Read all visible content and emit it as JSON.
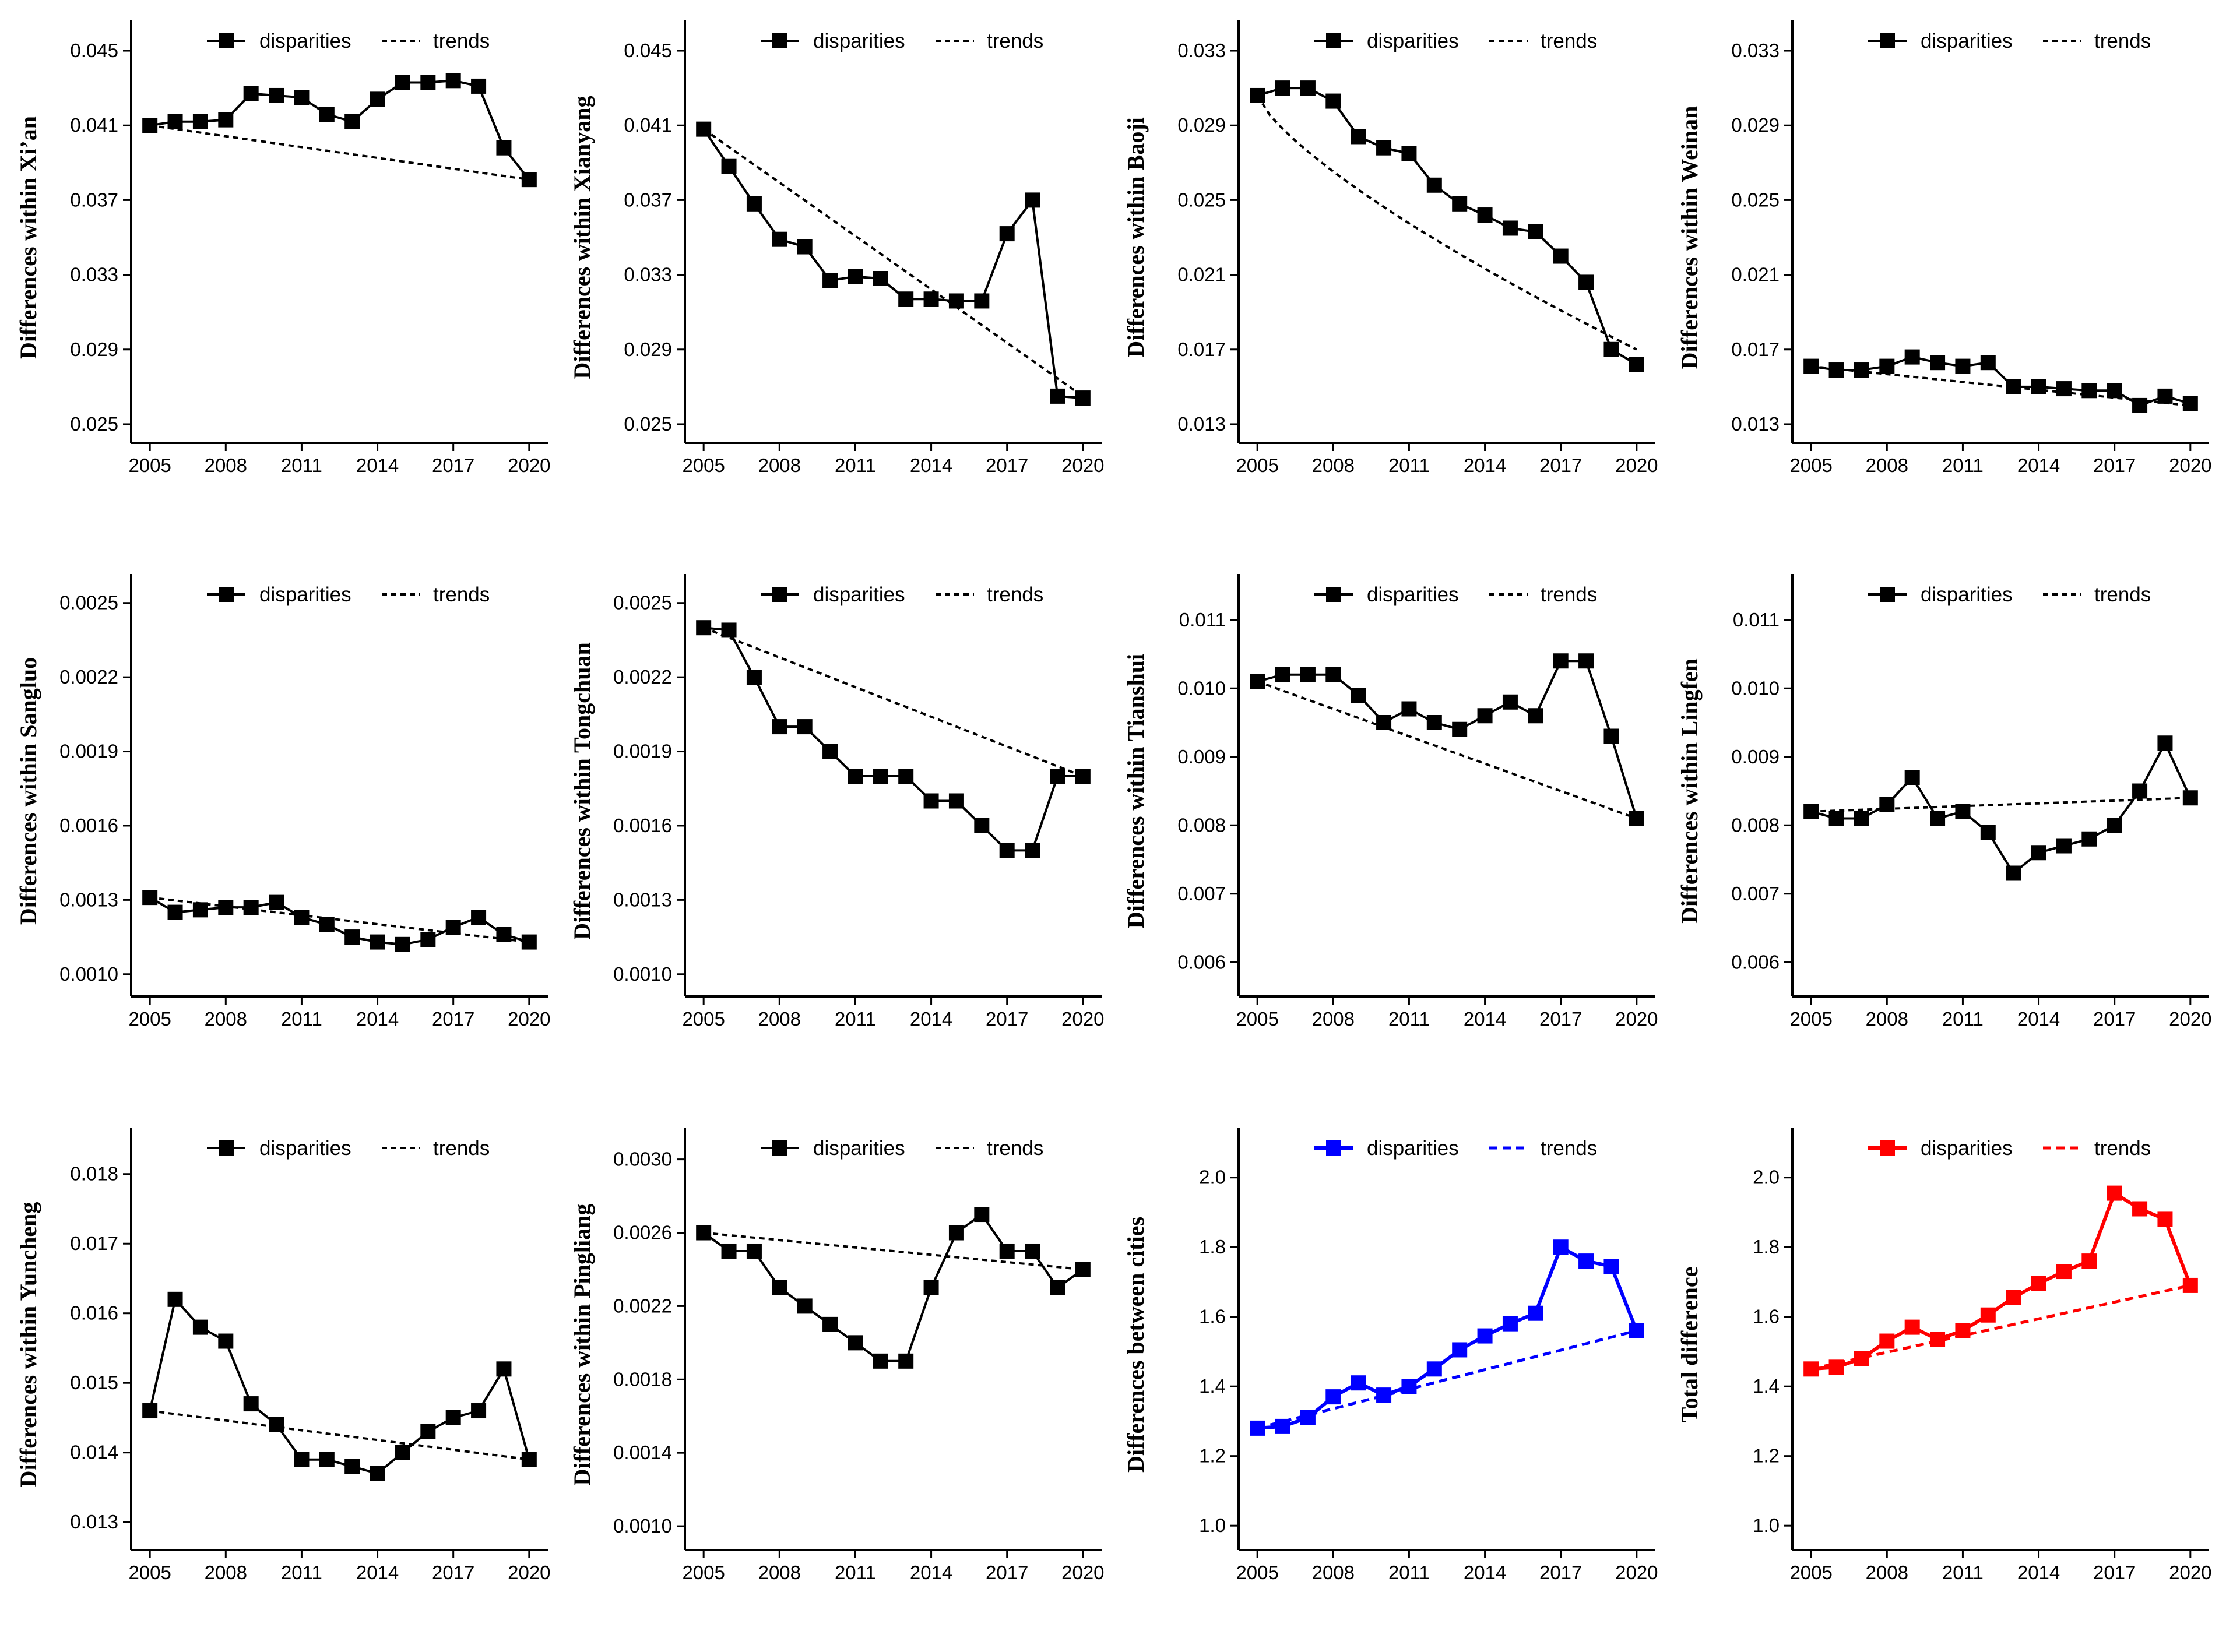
{
  "legend": {
    "series_label": "disparities",
    "trend_label": "trends"
  },
  "chart_data": [
    {
      "type": "line",
      "ylabel": "Differences within Xi’an",
      "color": "#000000",
      "x": [
        2005,
        2006,
        2007,
        2008,
        2009,
        2010,
        2011,
        2012,
        2013,
        2014,
        2015,
        2016,
        2017,
        2018,
        2019,
        2020
      ],
      "values": [
        0.041,
        0.0412,
        0.0412,
        0.0413,
        0.0427,
        0.0426,
        0.0425,
        0.0416,
        0.0412,
        0.0424,
        0.0433,
        0.0433,
        0.0434,
        0.0431,
        0.0398,
        0.0381
      ],
      "trend": [
        0.041,
        0.0381
      ],
      "xticks": [
        "2005",
        "2008",
        "2011",
        "2014",
        "2017",
        "2020"
      ],
      "yticks": [
        "0.025",
        "0.029",
        "0.033",
        "0.037",
        "0.041",
        "0.045"
      ],
      "ylim": [
        0.024,
        0.046
      ]
    },
    {
      "type": "line",
      "ylabel": "Differences within Xianyang",
      "color": "#000000",
      "x": [
        2005,
        2006,
        2007,
        2008,
        2009,
        2010,
        2011,
        2012,
        2013,
        2014,
        2015,
        2016,
        2017,
        2018,
        2019,
        2020
      ],
      "values": [
        0.0408,
        0.0388,
        0.0368,
        0.0349,
        0.0345,
        0.0327,
        0.0329,
        0.0328,
        0.0317,
        0.0317,
        0.0316,
        0.0316,
        0.0352,
        0.037,
        0.0265,
        0.0264
      ],
      "trend": [
        0.0408,
        0.0265
      ],
      "xticks": [
        "2005",
        "2008",
        "2011",
        "2014",
        "2017",
        "2020"
      ],
      "yticks": [
        "0.025",
        "0.029",
        "0.033",
        "0.037",
        "0.041",
        "0.045"
      ],
      "ylim": [
        0.024,
        0.046
      ]
    },
    {
      "type": "line",
      "ylabel": "Differences within Baoji",
      "color": "#000000",
      "x": [
        2005,
        2006,
        2007,
        2008,
        2009,
        2010,
        2011,
        2012,
        2013,
        2014,
        2015,
        2016,
        2017,
        2018,
        2019,
        2020
      ],
      "values": [
        0.0306,
        0.031,
        0.031,
        0.0303,
        0.0284,
        0.0278,
        0.0275,
        0.0258,
        0.0248,
        0.0242,
        0.0235,
        0.0233,
        0.022,
        0.0206,
        0.017,
        0.0162
      ],
      "trend": [
        0.0306,
        0.017
      ],
      "trend_curve": 0.25,
      "xticks": [
        "2005",
        "2008",
        "2011",
        "2014",
        "2017",
        "2020"
      ],
      "yticks": [
        "0.013",
        "0.017",
        "0.021",
        "0.025",
        "0.029",
        "0.033"
      ],
      "ylim": [
        0.012,
        0.034
      ]
    },
    {
      "type": "line",
      "ylabel": "Differences within Weinan",
      "color": "#000000",
      "x": [
        2005,
        2006,
        2007,
        2008,
        2009,
        2010,
        2011,
        2012,
        2013,
        2014,
        2015,
        2016,
        2017,
        2018,
        2019,
        2020
      ],
      "values": [
        0.0161,
        0.0159,
        0.0159,
        0.0161,
        0.0166,
        0.0163,
        0.0161,
        0.0163,
        0.015,
        0.015,
        0.0149,
        0.0148,
        0.0148,
        0.014,
        0.0145,
        0.0141
      ],
      "trend": [
        0.0161,
        0.014
      ],
      "trend_start": 2005,
      "trend_end": 2020,
      "xticks": [
        "2005",
        "2008",
        "2011",
        "2014",
        "2017",
        "2020"
      ],
      "yticks": [
        "0.013",
        "0.017",
        "0.021",
        "0.025",
        "0.029",
        "0.033"
      ],
      "ylim": [
        0.012,
        0.034
      ]
    },
    {
      "type": "line",
      "ylabel": "Differences within Sangluo",
      "color": "#000000",
      "x": [
        2005,
        2006,
        2007,
        2008,
        2009,
        2010,
        2011,
        2012,
        2013,
        2014,
        2015,
        2016,
        2017,
        2018,
        2019,
        2020
      ],
      "values": [
        0.00131,
        0.00125,
        0.00126,
        0.00127,
        0.00127,
        0.00129,
        0.00123,
        0.0012,
        0.00115,
        0.00113,
        0.00112,
        0.00114,
        0.00119,
        0.00123,
        0.00116,
        0.00113
      ],
      "trend": [
        0.00131,
        0.00113
      ],
      "xticks": [
        "2005",
        "2008",
        "2011",
        "2014",
        "2017",
        "2020"
      ],
      "yticks": [
        "0.0010",
        "0.0013",
        "0.0016",
        "0.0019",
        "0.0022",
        "0.0025"
      ],
      "ylim": [
        0.00091,
        0.00257
      ]
    },
    {
      "type": "line",
      "ylabel": "Differences within Tongchuan",
      "color": "#000000",
      "x": [
        2005,
        2006,
        2007,
        2008,
        2009,
        2010,
        2011,
        2012,
        2013,
        2014,
        2015,
        2016,
        2017,
        2018,
        2019,
        2020
      ],
      "values": [
        0.0024,
        0.00239,
        0.0022,
        0.002,
        0.002,
        0.0019,
        0.0018,
        0.0018,
        0.0018,
        0.0017,
        0.0017,
        0.0016,
        0.0015,
        0.0015,
        0.0018,
        0.0018
      ],
      "trend": [
        0.0024,
        0.0018
      ],
      "xticks": [
        "2005",
        "2008",
        "2011",
        "2014",
        "2017",
        "2020"
      ],
      "yticks": [
        "0.0010",
        "0.0013",
        "0.0016",
        "0.0019",
        "0.0022",
        "0.0025"
      ],
      "ylim": [
        0.00091,
        0.00257
      ]
    },
    {
      "type": "line",
      "ylabel": "Differences within Tianshui",
      "color": "#000000",
      "x": [
        2005,
        2006,
        2007,
        2008,
        2009,
        2010,
        2011,
        2012,
        2013,
        2014,
        2015,
        2016,
        2017,
        2018,
        2019,
        2020
      ],
      "values": [
        0.0101,
        0.0102,
        0.0102,
        0.0102,
        0.0099,
        0.0095,
        0.0097,
        0.0095,
        0.0094,
        0.0096,
        0.0098,
        0.0096,
        0.0104,
        0.0104,
        0.0093,
        0.0081
      ],
      "trend": [
        0.0101,
        0.0081
      ],
      "xticks": [
        "2005",
        "2008",
        "2011",
        "2014",
        "2017",
        "2020"
      ],
      "yticks": [
        "0.006",
        "0.007",
        "0.008",
        "0.009",
        "0.010",
        "0.011"
      ],
      "ylim": [
        0.0055,
        0.0115
      ]
    },
    {
      "type": "line",
      "ylabel": "Differences within Lingfen",
      "color": "#000000",
      "x": [
        2005,
        2006,
        2007,
        2008,
        2009,
        2010,
        2011,
        2012,
        2013,
        2014,
        2015,
        2016,
        2017,
        2018,
        2019,
        2020
      ],
      "values": [
        0.0082,
        0.0081,
        0.0081,
        0.0083,
        0.0087,
        0.0081,
        0.0082,
        0.0079,
        0.0073,
        0.0076,
        0.0077,
        0.0078,
        0.008,
        0.0085,
        0.0092,
        0.0084
      ],
      "trend": [
        0.0082,
        0.0084
      ],
      "xticks": [
        "2005",
        "2008",
        "2011",
        "2014",
        "2017",
        "2020"
      ],
      "yticks": [
        "0.006",
        "0.007",
        "0.008",
        "0.009",
        "0.010",
        "0.011"
      ],
      "ylim": [
        0.0055,
        0.0115
      ]
    },
    {
      "type": "line",
      "ylabel": "Differences within Yuncheng",
      "color": "#000000",
      "x": [
        2005,
        2006,
        2007,
        2008,
        2009,
        2010,
        2011,
        2012,
        2013,
        2014,
        2015,
        2016,
        2017,
        2018,
        2019,
        2020
      ],
      "values": [
        0.0146,
        0.0162,
        0.0158,
        0.0156,
        0.0147,
        0.0144,
        0.0139,
        0.0139,
        0.0138,
        0.0137,
        0.014,
        0.0143,
        0.0145,
        0.0146,
        0.0152,
        0.0139
      ],
      "trend": [
        0.0146,
        0.0139
      ],
      "xticks": [
        "2005",
        "2008",
        "2011",
        "2014",
        "2017",
        "2020"
      ],
      "yticks": [
        "0.013",
        "0.014",
        "0.015",
        "0.016",
        "0.017",
        "0.018"
      ],
      "ylim": [
        0.0126,
        0.0185
      ]
    },
    {
      "type": "line",
      "ylabel": "Differences within Pingliang",
      "color": "#000000",
      "x": [
        2005,
        2006,
        2007,
        2008,
        2009,
        2010,
        2011,
        2012,
        2013,
        2014,
        2015,
        2016,
        2017,
        2018,
        2019,
        2020
      ],
      "values": [
        0.0026,
        0.0025,
        0.0025,
        0.0023,
        0.0022,
        0.0021,
        0.002,
        0.0019,
        0.0019,
        0.0023,
        0.0026,
        0.0027,
        0.0025,
        0.0025,
        0.0023,
        0.0024
      ],
      "trend": [
        0.0026,
        0.0024
      ],
      "xticks": [
        "2005",
        "2008",
        "2011",
        "2014",
        "2017",
        "2020"
      ],
      "yticks": [
        "0.0010",
        "0.0014",
        "0.0018",
        "0.0022",
        "0.0026",
        "0.0030"
      ],
      "ylim": [
        0.00087,
        0.00311
      ]
    },
    {
      "type": "line",
      "ylabel": "Differences between cities",
      "color": "#0000ff",
      "x": [
        2005,
        2006,
        2007,
        2008,
        2009,
        2010,
        2011,
        2012,
        2013,
        2014,
        2015,
        2016,
        2017,
        2018,
        2019,
        2020
      ],
      "values": [
        1.28,
        1.285,
        1.31,
        1.37,
        1.41,
        1.375,
        1.4,
        1.45,
        1.505,
        1.545,
        1.58,
        1.61,
        1.8,
        1.76,
        1.745,
        1.56
      ],
      "trend": [
        1.28,
        1.56
      ],
      "xticks": [
        "2005",
        "2008",
        "2011",
        "2014",
        "2017",
        "2020"
      ],
      "yticks": [
        "1.0",
        "1.2",
        "1.4",
        "1.6",
        "1.8",
        "2.0"
      ],
      "ylim": [
        0.93,
        2.11
      ]
    },
    {
      "type": "line",
      "ylabel": "Total difference",
      "color": "#ff0000",
      "x": [
        2005,
        2006,
        2007,
        2008,
        2009,
        2010,
        2011,
        2012,
        2013,
        2014,
        2015,
        2016,
        2017,
        2018,
        2019,
        2020
      ],
      "values": [
        1.45,
        1.455,
        1.48,
        1.53,
        1.57,
        1.535,
        1.56,
        1.605,
        1.655,
        1.695,
        1.73,
        1.76,
        1.955,
        1.91,
        1.88,
        1.69
      ],
      "trend": [
        1.45,
        1.69
      ],
      "xticks": [
        "2005",
        "2008",
        "2011",
        "2014",
        "2017",
        "2020"
      ],
      "yticks": [
        "1.0",
        "1.2",
        "1.4",
        "1.6",
        "1.8",
        "2.0"
      ],
      "ylim": [
        0.93,
        2.11
      ]
    }
  ]
}
